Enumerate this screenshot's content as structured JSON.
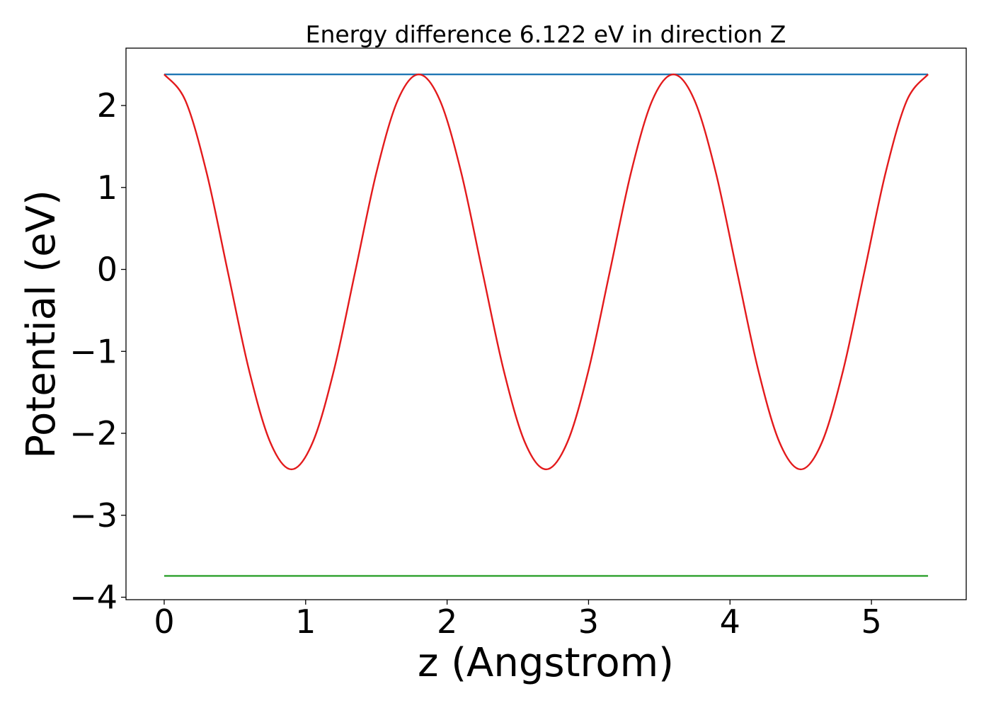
{
  "chart_data": {
    "type": "line",
    "title": "Energy difference 6.122 eV in direction Z",
    "xlabel": "z (Angstrom)",
    "ylabel": "Potential (eV)",
    "xlim": [
      -0.27,
      5.67
    ],
    "ylim": [
      -4.03,
      2.7
    ],
    "x_ticks": [
      0,
      1,
      2,
      3,
      4,
      5
    ],
    "x_tick_labels": [
      "0",
      "1",
      "2",
      "3",
      "4",
      "5"
    ],
    "y_ticks": [
      2,
      1,
      0,
      -1,
      -2,
      -3,
      -4
    ],
    "y_tick_labels": [
      "2",
      "1",
      "0",
      "−1",
      "−2",
      "−3",
      "−4"
    ],
    "grid": false,
    "series": [
      {
        "color": "#1f77b4",
        "x": [
          0.0,
          5.4
        ],
        "y": [
          2.38,
          2.38
        ]
      },
      {
        "color": "#2ca02c",
        "x": [
          0.0,
          5.4
        ],
        "y": [
          -3.74,
          -3.74
        ]
      },
      {
        "color": "#e31a1c",
        "x": [
          0.0,
          0.15,
          0.3,
          0.45,
          0.6,
          0.75,
          0.9,
          1.05,
          1.2,
          1.35,
          1.5,
          1.65,
          1.8,
          1.95,
          2.1,
          2.25,
          2.4,
          2.55,
          2.7,
          2.85,
          3.0,
          3.15,
          3.3,
          3.45,
          3.6,
          3.75,
          3.9,
          4.05,
          4.2,
          4.35,
          4.5,
          4.65,
          4.8,
          4.95,
          5.1,
          5.25,
          5.4
        ],
        "y": [
          2.38,
          2.06,
          1.18,
          -0.03,
          -1.23,
          -2.11,
          -2.44,
          -2.11,
          -1.23,
          -0.03,
          1.18,
          2.06,
          2.38,
          2.06,
          1.18,
          -0.03,
          -1.23,
          -2.11,
          -2.44,
          -2.11,
          -1.23,
          -0.03,
          1.18,
          2.06,
          2.38,
          2.06,
          1.18,
          -0.03,
          -1.23,
          -2.11,
          -2.44,
          -2.11,
          -1.23,
          -0.03,
          1.18,
          2.06,
          2.38
        ]
      }
    ]
  }
}
